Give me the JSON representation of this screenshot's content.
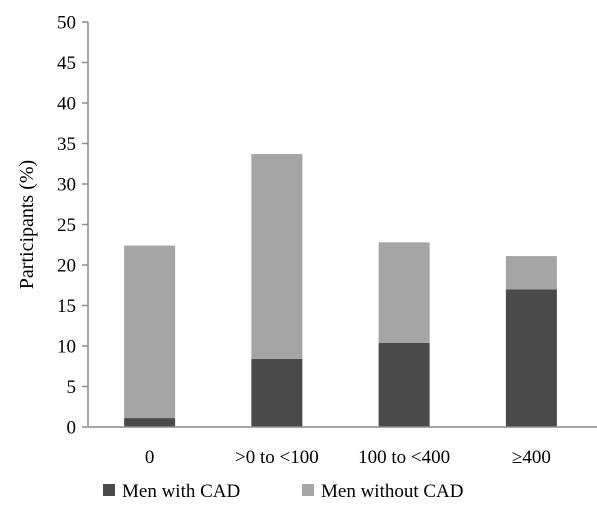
{
  "chart_data": {
    "type": "bar",
    "stacked": true,
    "title": "",
    "xlabel": "",
    "ylabel": "Participants (%)",
    "ylim": [
      0,
      50
    ],
    "yticks": [
      "0",
      "5",
      "10",
      "15",
      "20",
      "25",
      "30",
      "35",
      "40",
      "45",
      "50"
    ],
    "categories": [
      "0",
      ">0 to <100",
      "100 to <400",
      "≥400"
    ],
    "series": [
      {
        "name": "Men with CAD",
        "color": "#4a4a4a",
        "values": [
          1.1,
          8.4,
          10.4,
          17.0
        ]
      },
      {
        "name": "Men without CAD",
        "color": "#a5a5a5",
        "values": [
          21.3,
          25.3,
          12.4,
          4.1
        ]
      }
    ],
    "grid": false,
    "legend_position": "bottom-center"
  }
}
